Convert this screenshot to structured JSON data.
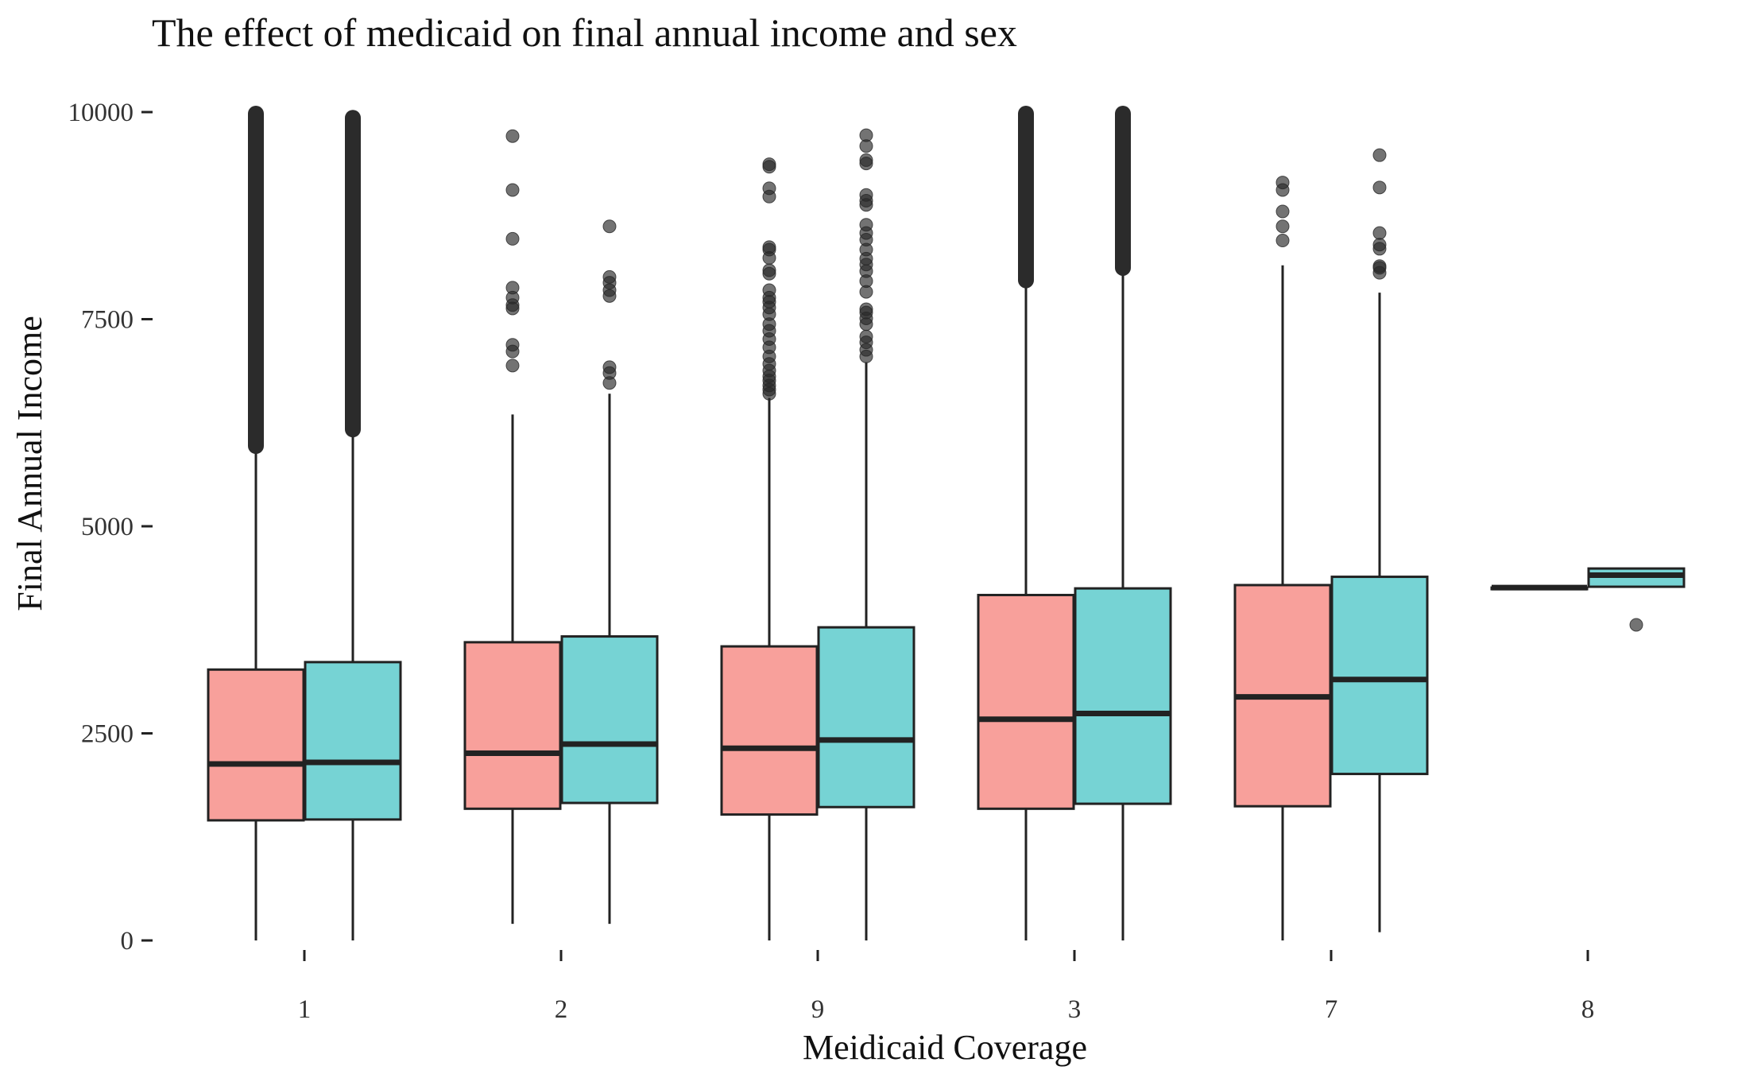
{
  "chart_data": {
    "type": "boxplot",
    "title": "The effect of medicaid on  final annual income and sex",
    "xlabel": "Meidicaid Coverage",
    "ylabel": "Final Annual Income",
    "ylim": [
      0,
      10000
    ],
    "yticks": [
      0,
      2500,
      5000,
      7500,
      10000
    ],
    "grid": false,
    "legend": "none",
    "categories": [
      "1",
      "2",
      "9",
      "3",
      "7",
      "8"
    ],
    "series": [
      {
        "color": "#F8A09B",
        "boxes": [
          {
            "category": "1",
            "whisker_low": 0,
            "q1": 1450,
            "median": 2130,
            "q3": 3270,
            "whisker_high": 5950,
            "outliers": [],
            "outlier_band": [
              5950,
              10000
            ]
          },
          {
            "category": "2",
            "whisker_low": 200,
            "q1": 1590,
            "median": 2260,
            "q3": 3600,
            "whisker_high": 6350,
            "outliers": [
              6940,
              7110,
              7190,
              7630,
              7670,
              7760,
              7880,
              8470,
              9060,
              9710
            ],
            "outlier_band": null
          },
          {
            "category": "9",
            "whisker_low": 0,
            "q1": 1520,
            "median": 2320,
            "q3": 3550,
            "whisker_high": 6550,
            "outliers": [
              6600,
              6650,
              6700,
              6760,
              6810,
              6880,
              6960,
              7050,
              7160,
              7260,
              7360,
              7440,
              7560,
              7640,
              7710,
              7760,
              7850,
              8050,
              8090,
              8240,
              8340,
              8370,
              8980,
              9080,
              9340,
              9370
            ],
            "outlier_band": null
          },
          {
            "category": "3",
            "whisker_low": 0,
            "q1": 1590,
            "median": 2670,
            "q3": 4170,
            "whisker_high": 7950,
            "outliers": [],
            "outlier_band": [
              7950,
              10000
            ]
          },
          {
            "category": "7",
            "whisker_low": 0,
            "q1": 1620,
            "median": 2940,
            "q3": 4290,
            "whisker_high": 8150,
            "outliers": [
              8450,
              8620,
              8800,
              9060,
              9150
            ],
            "outlier_band": null
          },
          {
            "category": "8",
            "whisker_low": 4260,
            "q1": 4260,
            "median": 4260,
            "q3": 4260,
            "whisker_high": 4260,
            "outliers": [],
            "outlier_band": null
          }
        ]
      },
      {
        "color": "#76D3D4",
        "boxes": [
          {
            "category": "1",
            "whisker_low": 0,
            "q1": 1460,
            "median": 2150,
            "q3": 3360,
            "whisker_high": 6150,
            "outliers": [],
            "outlier_band": [
              6150,
              9950
            ]
          },
          {
            "category": "2",
            "whisker_low": 200,
            "q1": 1660,
            "median": 2370,
            "q3": 3670,
            "whisker_high": 6600,
            "outliers": [
              6730,
              6850,
              6920,
              7780,
              7850,
              7940,
              8010,
              8620
            ],
            "outlier_band": null
          },
          {
            "category": "9",
            "whisker_low": 0,
            "q1": 1610,
            "median": 2420,
            "q3": 3780,
            "whisker_high": 6980,
            "outliers": [
              7050,
              7130,
              7220,
              7290,
              7440,
              7510,
              7580,
              7620,
              7830,
              7960,
              8080,
              8160,
              8230,
              8340,
              8460,
              8540,
              8640,
              8880,
              8930,
              9000,
              9380,
              9420,
              9590,
              9720
            ],
            "outlier_band": null
          },
          {
            "category": "3",
            "whisker_low": 0,
            "q1": 1650,
            "median": 2740,
            "q3": 4250,
            "whisker_high": 8100,
            "outliers": [],
            "outlier_band": [
              8100,
              10000
            ]
          },
          {
            "category": "7",
            "whisker_low": 100,
            "q1": 2010,
            "median": 3150,
            "q3": 4390,
            "whisker_high": 7820,
            "outliers": [
              8060,
              8120,
              8140,
              8350,
              8400,
              8540,
              9090,
              9480
            ],
            "outlier_band": null
          },
          {
            "category": "8",
            "whisker_low": 4270,
            "q1": 4270,
            "median": 4410,
            "q3": 4490,
            "whisker_high": 4490,
            "outliers": [
              3810
            ],
            "outlier_band": null
          }
        ]
      }
    ]
  }
}
